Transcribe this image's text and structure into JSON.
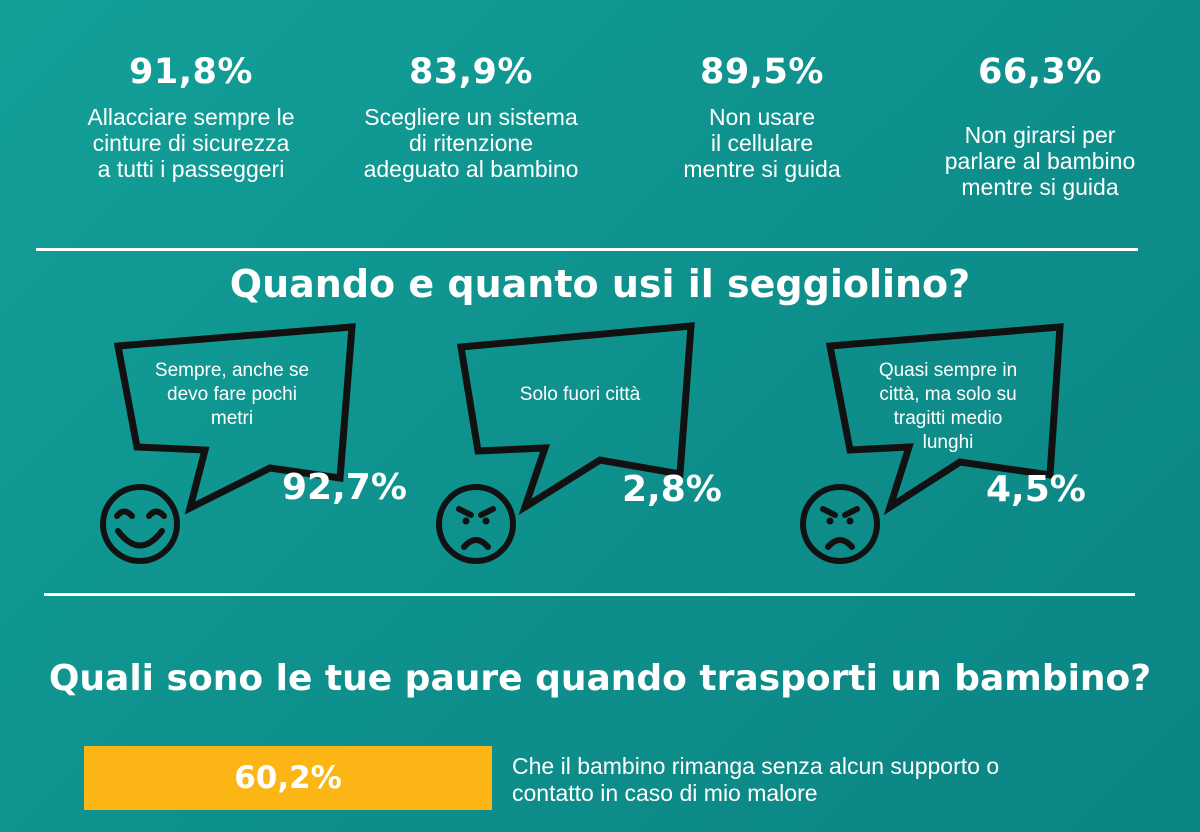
{
  "stats": [
    {
      "pct": "91,8%",
      "desc": "Allacciare sempre le\ncinture di sicurezza\na tutti i passeggeri"
    },
    {
      "pct": "83,9%",
      "desc": "Scegliere un sistema\ndi ritenzione\nadeguato al bambino"
    },
    {
      "pct": "89,5%",
      "desc": "Non usare\nil cellulare\nmentre si guida"
    },
    {
      "pct": "66,3%",
      "desc": "Non girarsi per\nparlare al bambino\nmentre si guida"
    }
  ],
  "section1": {
    "title": "Quando e quanto usi il seggiolino?",
    "answers": [
      {
        "text": "Sempre, anche se\ndevo fare pochi\nmetri",
        "pct": "92,7%",
        "mood": "happy-face-icon"
      },
      {
        "text": "Solo fuori città",
        "pct": "2,8%",
        "mood": "sad-face-icon"
      },
      {
        "text": "Quasi sempre in\ncittà, ma solo su\ntragitti medio\nlunghi",
        "pct": "4,5%",
        "mood": "sad-face-icon"
      }
    ]
  },
  "section2": {
    "title": "Quali sono le tue paure quando trasporti un bambino?",
    "fears": [
      {
        "pct": "60,2%",
        "value": 60.2,
        "text": "Che il bambino rimanga senza alcun supporto o\ncontatto in caso di mio malore"
      }
    ]
  },
  "colors": {
    "background": "#0e8f8b",
    "bar": "#fbb615",
    "stroke": "#111111",
    "text": "#ffffff"
  }
}
